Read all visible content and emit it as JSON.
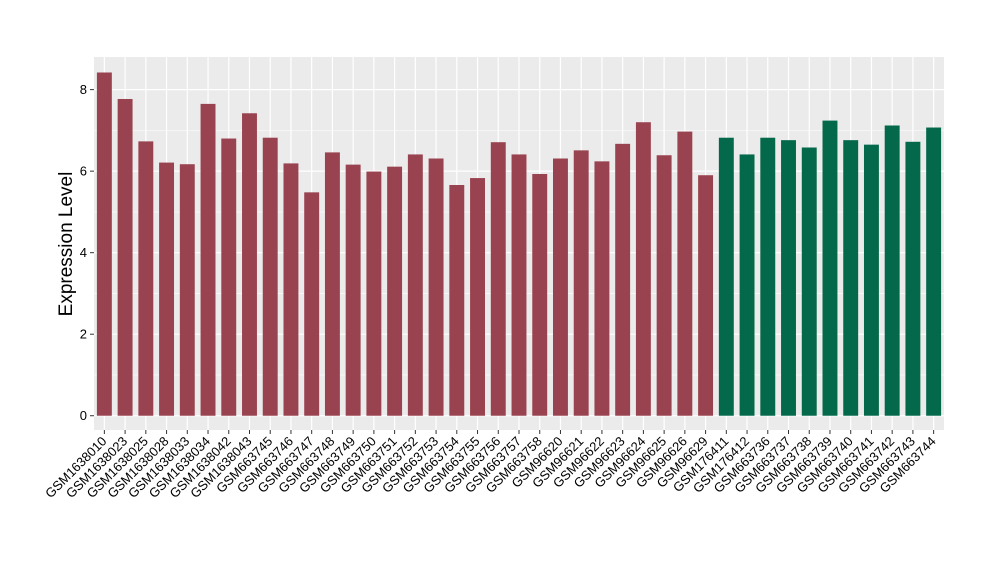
{
  "chart_data": {
    "type": "bar",
    "title": "",
    "xlabel": "",
    "ylabel": "Expression Level",
    "ylim": [
      -0.35,
      8.8
    ],
    "yticks": [
      0,
      2,
      4,
      6,
      8
    ],
    "grid": true,
    "legend": "none",
    "panel_color": "#ebebeb",
    "grid_color": "#ffffff",
    "categories": [
      "GSM1638010",
      "GSM1638023",
      "GSM1638025",
      "GSM1638028",
      "GSM1638033",
      "GSM1638034",
      "GSM1638042",
      "GSM1638043",
      "GSM663745",
      "GSM663746",
      "GSM663747",
      "GSM663748",
      "GSM663749",
      "GSM663750",
      "GSM663751",
      "GSM663752",
      "GSM663753",
      "GSM663754",
      "GSM663755",
      "GSM663756",
      "GSM663757",
      "GSM663758",
      "GSM96620",
      "GSM96621",
      "GSM96622",
      "GSM96623",
      "GSM96624",
      "GSM96625",
      "GSM96626",
      "GSM96629",
      "GSM176411",
      "GSM176412",
      "GSM663736",
      "GSM663737",
      "GSM663738",
      "GSM663739",
      "GSM663740",
      "GSM663741",
      "GSM663742",
      "GSM663743",
      "GSM663744"
    ],
    "values": [
      8.42,
      7.77,
      6.73,
      6.21,
      6.17,
      7.65,
      6.8,
      7.42,
      6.82,
      6.19,
      5.48,
      6.46,
      6.16,
      5.99,
      6.11,
      6.41,
      6.31,
      5.66,
      5.83,
      6.71,
      6.41,
      5.93,
      6.31,
      6.51,
      6.24,
      6.67,
      7.2,
      6.39,
      6.97,
      5.9,
      6.82,
      6.41,
      6.82,
      6.76,
      6.58,
      7.24,
      6.76,
      6.65,
      7.12,
      6.72,
      7.07
    ],
    "groups": [
      {
        "color": "#9a4350",
        "count": 30
      },
      {
        "color": "#04694a",
        "count": 11
      }
    ]
  }
}
